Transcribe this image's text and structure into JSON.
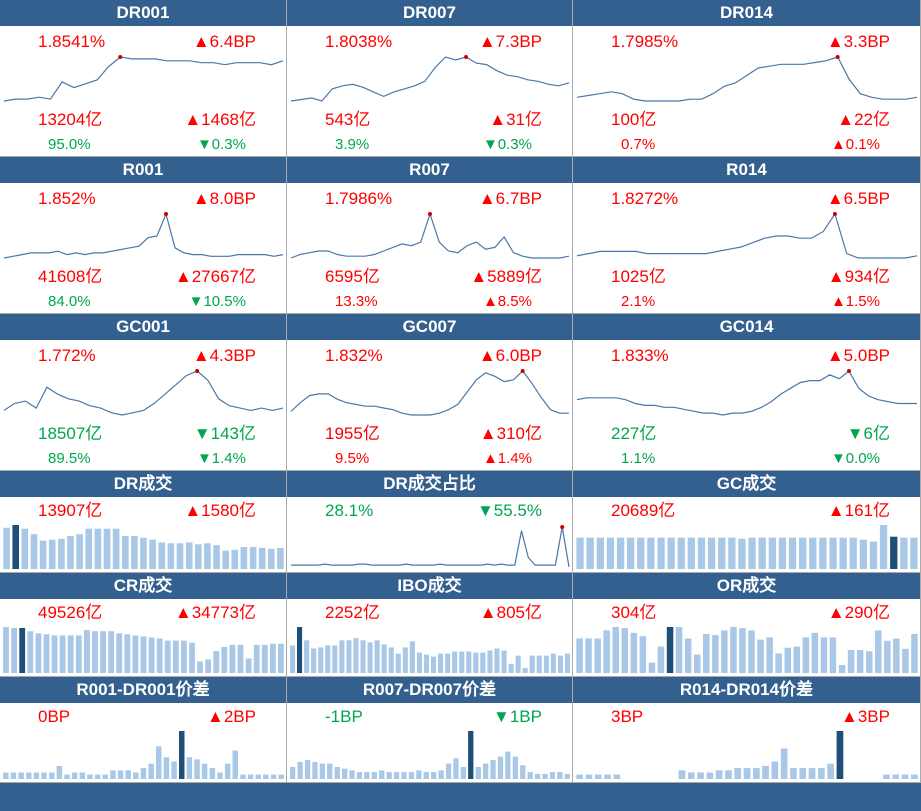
{
  "colors": {
    "header_bg": "#33608e",
    "up": "#ff0000",
    "down": "#00a650",
    "line": "#4a78a8",
    "bar": "#a9c8e8",
    "bar_highlight": "#1f4e79",
    "marker": "#cc0000"
  },
  "panels": [
    {
      "title": "DR001",
      "v1": "1.8541%",
      "c1": "red",
      "v2": "▲6.4BP",
      "c2": "red",
      "v3": "13204亿",
      "c3": "red",
      "v4": "▲1468亿",
      "c4": "red",
      "v5": "95.0%",
      "c5": "green",
      "v6": "▼0.3%",
      "c6": "green"
    },
    {
      "title": "DR007",
      "v1": "1.8038%",
      "c1": "red",
      "v2": "▲7.3BP",
      "c2": "red",
      "v3": "543亿",
      "c3": "red",
      "v4": "▲31亿",
      "c4": "red",
      "v5": "3.9%",
      "c5": "green",
      "v6": "▼0.3%",
      "c6": "green"
    },
    {
      "title": "DR014",
      "v1": "1.7985%",
      "c1": "red",
      "v2": "▲3.3BP",
      "c2": "red",
      "v3": "100亿",
      "c3": "red",
      "v4": "▲22亿",
      "c4": "red",
      "v5": "0.7%",
      "c5": "red",
      "v6": "▲0.1%",
      "c6": "red"
    },
    {
      "title": "R001",
      "v1": "1.852%",
      "c1": "red",
      "v2": "▲8.0BP",
      "c2": "red",
      "v3": "41608亿",
      "c3": "red",
      "v4": "▲27667亿",
      "c4": "red",
      "v5": "84.0%",
      "c5": "green",
      "v6": "▼10.5%",
      "c6": "green"
    },
    {
      "title": "R007",
      "v1": "1.7986%",
      "c1": "red",
      "v2": "▲6.7BP",
      "c2": "red",
      "v3": "6595亿",
      "c3": "red",
      "v4": "▲5889亿",
      "c4": "red",
      "v5": "13.3%",
      "c5": "red",
      "v6": "▲8.5%",
      "c6": "red"
    },
    {
      "title": "R014",
      "v1": "1.8272%",
      "c1": "red",
      "v2": "▲6.5BP",
      "c2": "red",
      "v3": "1025亿",
      "c3": "red",
      "v4": "▲934亿",
      "c4": "red",
      "v5": "2.1%",
      "c5": "red",
      "v6": "▲1.5%",
      "c6": "red"
    },
    {
      "title": "GC001",
      "v1": "1.772%",
      "c1": "red",
      "v2": "▲4.3BP",
      "c2": "red",
      "v3": "18507亿",
      "c3": "green",
      "v4": "▼143亿",
      "c4": "green",
      "v5": "89.5%",
      "c5": "green",
      "v6": "▼1.4%",
      "c6": "green"
    },
    {
      "title": "GC007",
      "v1": "1.832%",
      "c1": "red",
      "v2": "▲6.0BP",
      "c2": "red",
      "v3": "1955亿",
      "c3": "red",
      "v4": "▲310亿",
      "c4": "red",
      "v5": "9.5%",
      "c5": "red",
      "v6": "▲1.4%",
      "c6": "red"
    },
    {
      "title": "GC014",
      "v1": "1.833%",
      "c1": "red",
      "v2": "▲5.0BP",
      "c2": "red",
      "v3": "227亿",
      "c3": "green",
      "v4": "▼6亿",
      "c4": "green",
      "v5": "1.1%",
      "c5": "green",
      "v6": "▼0.0%",
      "c6": "green"
    },
    {
      "title": "DR成交",
      "v1": "13907亿",
      "c1": "red",
      "v2": "▲1580亿",
      "c2": "red"
    },
    {
      "title": "DR成交占比",
      "v1": "28.1%",
      "c1": "green",
      "v2": "▼55.5%",
      "c2": "green"
    },
    {
      "title": "GC成交",
      "v1": "20689亿",
      "c1": "red",
      "v2": "▲161亿",
      "c2": "red"
    },
    {
      "title": "CR成交",
      "v1": "49526亿",
      "c1": "red",
      "v2": "▲34773亿",
      "c2": "red"
    },
    {
      "title": "IBO成交",
      "v1": "2252亿",
      "c1": "red",
      "v2": "▲805亿",
      "c2": "red"
    },
    {
      "title": "OR成交",
      "v1": "304亿",
      "c1": "red",
      "v2": "▲290亿",
      "c2": "red"
    },
    {
      "title": "R001-DR001价差",
      "v1": "0BP",
      "c1": "red",
      "v2": "▲2BP",
      "c2": "red"
    },
    {
      "title": "R007-DR007价差",
      "v1": "-1BP",
      "c1": "green",
      "v2": "▼1BP",
      "c2": "green"
    },
    {
      "title": "R014-DR014价差",
      "v1": "3BP",
      "c1": "red",
      "v2": "▲3BP",
      "c2": "red"
    }
  ],
  "chart_data": [
    {
      "panel": "DR001",
      "type": "line",
      "values": [
        2,
        3,
        3,
        4,
        3,
        12,
        9,
        11,
        13,
        20,
        25,
        24,
        24,
        24,
        23,
        23,
        23,
        22,
        22,
        21,
        22,
        22,
        22,
        21,
        23
      ],
      "marker_index": 10
    },
    {
      "panel": "DR007",
      "type": "line",
      "values": [
        2,
        3,
        4,
        2,
        10,
        12,
        13,
        11,
        8,
        5,
        8,
        10,
        12,
        15,
        24,
        31,
        29,
        31,
        27,
        26,
        22,
        19,
        18,
        16,
        15,
        13,
        12,
        14
      ],
      "marker_index": 17
    },
    {
      "panel": "DR014",
      "type": "line",
      "values": [
        12,
        13,
        14,
        15,
        14,
        11,
        10,
        10,
        10,
        10,
        11,
        11,
        14,
        18,
        20,
        24,
        28,
        29,
        30,
        30,
        30,
        31,
        32,
        34,
        22,
        14,
        12,
        11,
        11,
        11,
        12
      ],
      "marker_index": 23
    },
    {
      "panel": "R001",
      "type": "line",
      "values": [
        2,
        3,
        4,
        5,
        5,
        5,
        6,
        4,
        5,
        4,
        5,
        5,
        6,
        7,
        8,
        9,
        14,
        15,
        28,
        8,
        5,
        4,
        4,
        3,
        3,
        3,
        4,
        4,
        4,
        4,
        3,
        4
      ],
      "marker_index": 18
    },
    {
      "panel": "R007",
      "type": "line",
      "values": [
        5,
        7,
        8,
        9,
        9,
        7,
        6,
        6,
        6,
        7,
        9,
        11,
        13,
        12,
        14,
        30,
        14,
        9,
        8,
        12,
        14,
        10,
        11,
        17,
        8,
        6,
        5,
        5,
        5,
        5,
        6
      ],
      "marker_index": 15
    },
    {
      "panel": "R014",
      "type": "line",
      "values": [
        8,
        9,
        10,
        10,
        10,
        10,
        9,
        9,
        9,
        9,
        9,
        9,
        10,
        11,
        12,
        14,
        16,
        17,
        17,
        16,
        16,
        19,
        27,
        9,
        7,
        7,
        7,
        7,
        7,
        8
      ],
      "marker_index": 22
    },
    {
      "panel": "GC001",
      "type": "line",
      "values": [
        5,
        8,
        9,
        6,
        15,
        12,
        10,
        9,
        7,
        6,
        4,
        3,
        4,
        5,
        8,
        12,
        16,
        20,
        22,
        18,
        10,
        7,
        6,
        5,
        6,
        5,
        6
      ],
      "marker_index": 18
    },
    {
      "panel": "GC007",
      "type": "line",
      "values": [
        6,
        11,
        15,
        16,
        16,
        13,
        11,
        10,
        9,
        9,
        8,
        7,
        5,
        4,
        4,
        4,
        5,
        7,
        10,
        17,
        24,
        28,
        26,
        23,
        24,
        29,
        22,
        14,
        7,
        5,
        5
      ],
      "marker_index": 25
    },
    {
      "panel": "GC014",
      "type": "line",
      "values": [
        12,
        13,
        13,
        13,
        13,
        12,
        10,
        9,
        9,
        8,
        8,
        7,
        6,
        5,
        5,
        4,
        5,
        5,
        6,
        8,
        11,
        15,
        18,
        21,
        22,
        22,
        25,
        23,
        27,
        18,
        14,
        12,
        11,
        10,
        10,
        10
      ],
      "marker_index": 28
    },
    {
      "panel": "DR成交",
      "type": "bar",
      "values": [
        45,
        48,
        44,
        38,
        31,
        32,
        33,
        36,
        38,
        44,
        44,
        44,
        44,
        36,
        36,
        34,
        32,
        29,
        28,
        28,
        29,
        27,
        28,
        26,
        20,
        21,
        24,
        24,
        23,
        22,
        23
      ],
      "highlight_index": 1
    },
    {
      "panel": "DR成交占比",
      "type": "line",
      "values": [
        2,
        2,
        2,
        2,
        2,
        3,
        2,
        2,
        2,
        2,
        3,
        3,
        2,
        2,
        2,
        2,
        2,
        3,
        2,
        2,
        2,
        2,
        3,
        2,
        2,
        2,
        2,
        2,
        2,
        3,
        2,
        3,
        2,
        2,
        38,
        10,
        2,
        2,
        2,
        2,
        42,
        0
      ],
      "marker_index": 40
    },
    {
      "panel": "GC成交",
      "type": "bar",
      "values": [
        32,
        32,
        32,
        32,
        32,
        32,
        32,
        32,
        32,
        32,
        32,
        32,
        32,
        32,
        32,
        32,
        31,
        32,
        32,
        32,
        32,
        32,
        32,
        32,
        32,
        32,
        32,
        32,
        30,
        28,
        45,
        33,
        32,
        32
      ],
      "highlight_index": 31
    },
    {
      "panel": "CR成交",
      "type": "bar",
      "values": [
        44,
        43,
        43,
        40,
        38,
        37,
        36,
        36,
        36,
        36,
        41,
        40,
        40,
        40,
        38,
        37,
        36,
        35,
        34,
        33,
        31,
        31,
        31,
        29,
        11,
        13,
        21,
        25,
        27,
        27,
        14,
        27,
        27,
        28,
        28
      ],
      "highlight_index": 2
    },
    {
      "panel": "IBO成交",
      "type": "bar",
      "values": [
        27,
        45,
        32,
        24,
        25,
        27,
        27,
        32,
        32,
        34,
        32,
        30,
        32,
        28,
        25,
        19,
        25,
        31,
        20,
        18,
        16,
        19,
        19,
        21,
        21,
        21,
        20,
        20,
        22,
        24,
        22,
        9,
        17,
        5,
        17,
        17,
        17,
        19,
        17,
        19
      ],
      "highlight_index": 1
    },
    {
      "panel": "OR成交",
      "type": "bar",
      "values": [
        30,
        30,
        30,
        37,
        40,
        39,
        35,
        32,
        9,
        23,
        40,
        40,
        30,
        16,
        34,
        33,
        37,
        40,
        39,
        37,
        29,
        31,
        17,
        22,
        23,
        31,
        35,
        31,
        31,
        7,
        20,
        20,
        19,
        37,
        28,
        30,
        21,
        34
      ],
      "highlight_index": 10
    },
    {
      "panel": "R001-DR001价差",
      "type": "bar",
      "values": [
        3,
        3,
        3,
        3,
        3,
        3,
        3,
        6,
        2,
        3,
        3,
        2,
        2,
        2,
        4,
        4,
        4,
        3,
        5,
        7,
        15,
        10,
        8,
        22,
        10,
        9,
        7,
        5,
        3,
        7,
        13,
        2,
        2,
        2,
        2,
        2,
        2
      ],
      "highlight_index": 23
    },
    {
      "panel": "R007-DR007价差",
      "type": "bar",
      "values": [
        7,
        10,
        11,
        10,
        9,
        9,
        7,
        6,
        5,
        4,
        4,
        4,
        5,
        4,
        4,
        4,
        4,
        5,
        4,
        4,
        5,
        9,
        12,
        7,
        28,
        7,
        9,
        11,
        13,
        16,
        13,
        8,
        4,
        3,
        3,
        4,
        4,
        3
      ],
      "highlight_index": 24
    },
    {
      "panel": "R014-DR014价差",
      "type": "bar",
      "values": [
        2,
        2,
        2,
        2,
        2,
        0,
        0,
        0,
        0,
        0,
        0,
        4,
        3,
        3,
        3,
        4,
        4,
        5,
        5,
        5,
        6,
        8,
        14,
        5,
        5,
        5,
        5,
        7,
        22,
        0,
        0,
        0,
        0,
        2,
        2,
        2,
        2
      ],
      "highlight_index": 28
    }
  ]
}
